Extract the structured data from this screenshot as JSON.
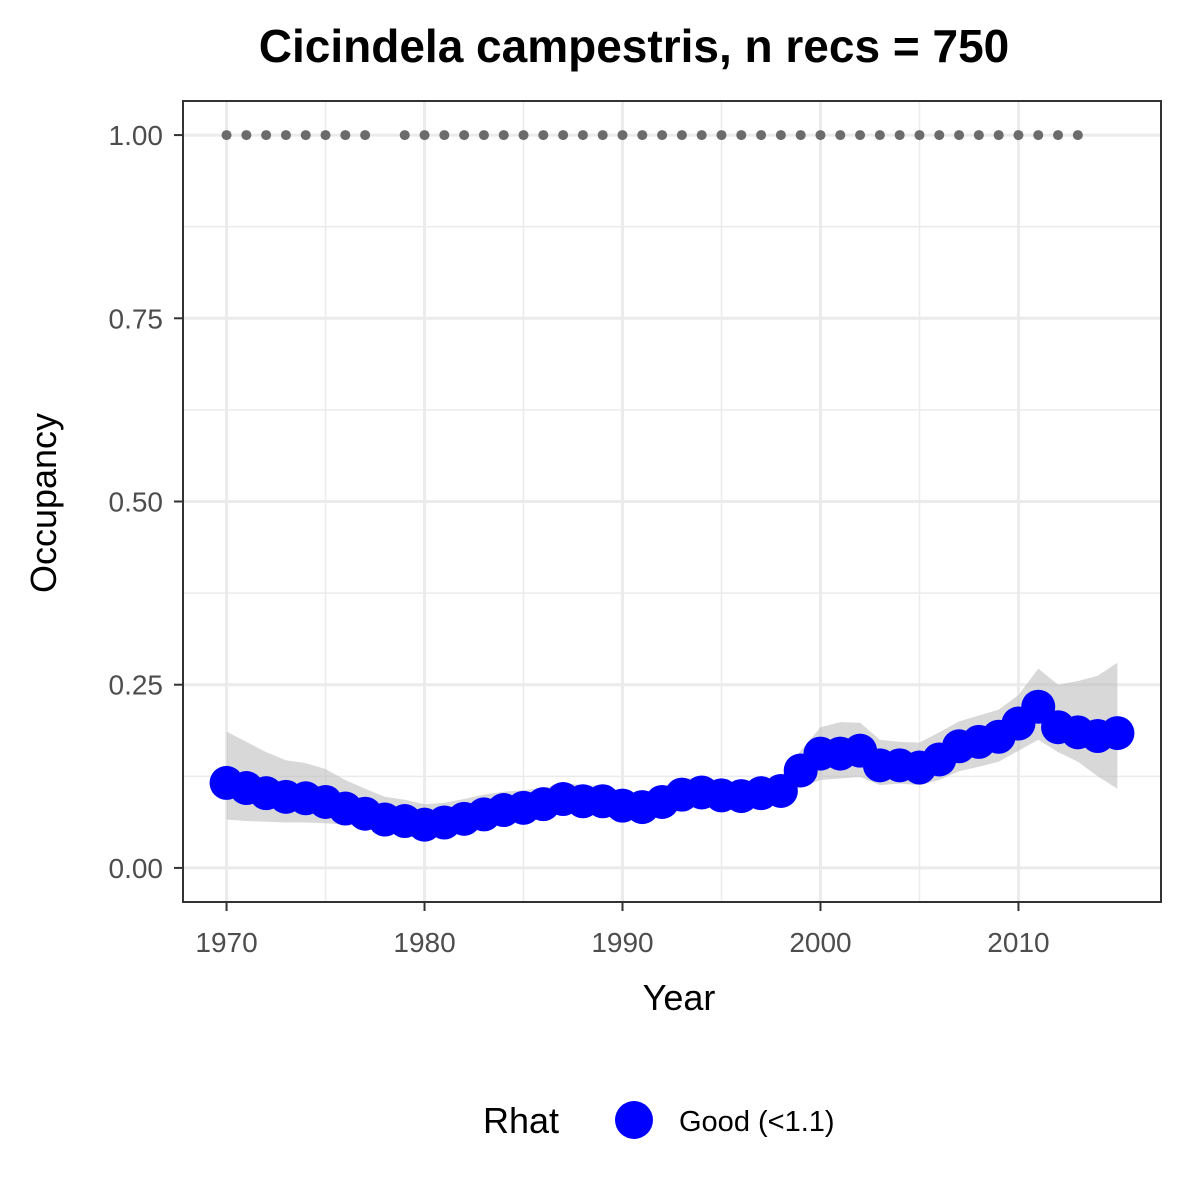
{
  "chart_data": {
    "type": "line",
    "title": "Cicindela campestris, n recs = 750",
    "xlabel": "Year",
    "ylabel": "Occupancy",
    "xlim": [
      1967.8,
      2017.2
    ],
    "ylim": [
      -0.0465,
      1.0465
    ],
    "x_ticks": [
      1970,
      1980,
      1990,
      2000,
      2010
    ],
    "x_tick_labels": [
      "1970",
      "1980",
      "1990",
      "2000",
      "2010"
    ],
    "y_ticks": [
      0,
      0.25,
      0.5,
      0.75,
      1.0
    ],
    "y_tick_labels": [
      "0.00",
      "0.25",
      "0.50",
      "0.75",
      "1.00"
    ],
    "grid": true,
    "legend_position": "bottom",
    "legend": {
      "title": "Rhat",
      "entries": [
        {
          "label": "Good (<1.1)",
          "color": "#0000FF"
        }
      ]
    },
    "colors": {
      "series": "#0000FF",
      "ribbon": "#BEBEBE",
      "record_dots": "#6B6B6B",
      "grid": "#EBEBEB",
      "panel_border": "#333333"
    },
    "series": [
      {
        "x": [
          1970,
          1971,
          1972,
          1973,
          1974,
          1975,
          1976,
          1977,
          1978,
          1979,
          1980,
          1981,
          1982,
          1983,
          1984,
          1985,
          1986,
          1987,
          1988,
          1989,
          1990,
          1991,
          1992,
          1993,
          1994,
          1995,
          1996,
          1997,
          1998,
          1999,
          2000,
          2001,
          2002,
          2003,
          2004,
          2005,
          2006,
          2007,
          2008,
          2009,
          2010,
          2011,
          2012,
          2013,
          2014,
          2015
        ],
        "y": [
          0.116,
          0.109,
          0.102,
          0.097,
          0.095,
          0.09,
          0.081,
          0.074,
          0.066,
          0.064,
          0.059,
          0.062,
          0.067,
          0.073,
          0.079,
          0.082,
          0.087,
          0.094,
          0.091,
          0.091,
          0.085,
          0.083,
          0.09,
          0.1,
          0.103,
          0.099,
          0.098,
          0.102,
          0.105,
          0.133,
          0.156,
          0.156,
          0.16,
          0.14,
          0.14,
          0.137,
          0.148,
          0.166,
          0.172,
          0.179,
          0.197,
          0.22,
          0.192,
          0.185,
          0.18,
          0.184
        ],
        "lower": [
          0.066,
          0.064,
          0.063,
          0.062,
          0.062,
          0.061,
          0.059,
          0.056,
          0.053,
          0.052,
          0.05,
          0.051,
          0.054,
          0.058,
          0.062,
          0.066,
          0.07,
          0.074,
          0.075,
          0.075,
          0.073,
          0.071,
          0.075,
          0.082,
          0.085,
          0.085,
          0.086,
          0.088,
          0.092,
          0.11,
          0.12,
          0.122,
          0.124,
          0.113,
          0.115,
          0.113,
          0.12,
          0.132,
          0.138,
          0.145,
          0.16,
          0.175,
          0.158,
          0.145,
          0.125,
          0.108
        ],
        "upper": [
          0.186,
          0.172,
          0.158,
          0.147,
          0.143,
          0.135,
          0.12,
          0.108,
          0.097,
          0.093,
          0.087,
          0.089,
          0.094,
          0.1,
          0.104,
          0.106,
          0.109,
          0.116,
          0.113,
          0.112,
          0.105,
          0.102,
          0.11,
          0.121,
          0.124,
          0.119,
          0.117,
          0.121,
          0.125,
          0.16,
          0.192,
          0.199,
          0.198,
          0.175,
          0.172,
          0.171,
          0.185,
          0.2,
          0.208,
          0.216,
          0.236,
          0.272,
          0.25,
          0.255,
          0.262,
          0.28
        ]
      }
    ],
    "records": {
      "y": 1.0,
      "x": [
        1970,
        1971,
        1972,
        1973,
        1974,
        1975,
        1976,
        1977,
        1979,
        1980,
        1981,
        1982,
        1983,
        1984,
        1985,
        1986,
        1987,
        1988,
        1989,
        1990,
        1991,
        1992,
        1993,
        1994,
        1995,
        1996,
        1997,
        1998,
        1999,
        2000,
        2001,
        2002,
        2003,
        2004,
        2005,
        2006,
        2007,
        2008,
        2009,
        2010,
        2011,
        2012,
        2013
      ]
    }
  }
}
